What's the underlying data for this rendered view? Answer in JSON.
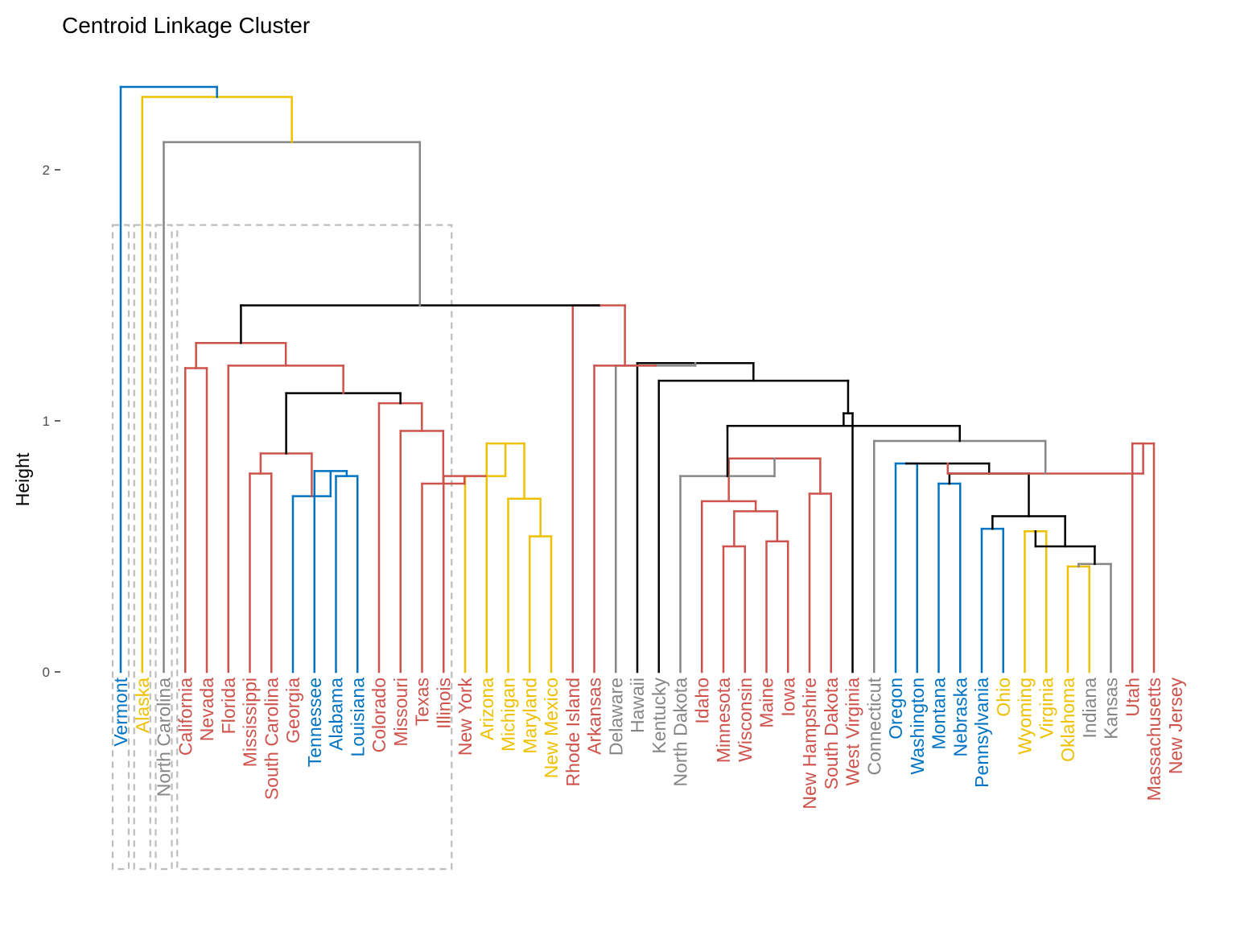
{
  "chart_data": {
    "type": "dendrogram",
    "title": "Centroid Linkage Cluster",
    "ylabel": "Height",
    "xlabel": "",
    "ylim": [
      0,
      2.35
    ],
    "y_ticks": [
      0,
      1,
      2
    ],
    "grid": false,
    "colors": {
      "blue": "#0073C2",
      "yellow": "#EFC000",
      "gray": "#868686",
      "red": "#CD534C",
      "black": "#000000",
      "box": "#BDBDBD"
    },
    "leaves": [
      {
        "name": "Vermont",
        "color": "blue"
      },
      {
        "name": "Alaska",
        "color": "yellow"
      },
      {
        "name": "North Carolina",
        "color": "gray"
      },
      {
        "name": "California",
        "color": "red"
      },
      {
        "name": "Nevada",
        "color": "red"
      },
      {
        "name": "Florida",
        "color": "red"
      },
      {
        "name": "Mississippi",
        "color": "red"
      },
      {
        "name": "South Carolina",
        "color": "red"
      },
      {
        "name": "Georgia",
        "color": "red"
      },
      {
        "name": "Tennessee",
        "color": "blue"
      },
      {
        "name": "Alabama",
        "color": "blue"
      },
      {
        "name": "Louisiana",
        "color": "blue"
      },
      {
        "name": "Colorado",
        "color": "red"
      },
      {
        "name": "Missouri",
        "color": "red"
      },
      {
        "name": "Texas",
        "color": "red"
      },
      {
        "name": "Illinois",
        "color": "red"
      },
      {
        "name": "New York",
        "color": "red"
      },
      {
        "name": "Arizona",
        "color": "yellow"
      },
      {
        "name": "Michigan",
        "color": "yellow"
      },
      {
        "name": "Maryland",
        "color": "yellow"
      },
      {
        "name": "New Mexico",
        "color": "yellow"
      },
      {
        "name": "Rhode Island",
        "color": "red"
      },
      {
        "name": "Arkansas",
        "color": "red"
      },
      {
        "name": "Delaware",
        "color": "gray"
      },
      {
        "name": "Hawaii",
        "color": "gray"
      },
      {
        "name": "Kentucky",
        "color": "gray"
      },
      {
        "name": "North Dakota",
        "color": "gray"
      },
      {
        "name": "Idaho",
        "color": "red"
      },
      {
        "name": "Minnesota",
        "color": "red"
      },
      {
        "name": "Wisconsin",
        "color": "red"
      },
      {
        "name": "Maine",
        "color": "red"
      },
      {
        "name": "Iowa",
        "color": "red"
      },
      {
        "name": "New Hampshire",
        "color": "red"
      },
      {
        "name": "South Dakota",
        "color": "red"
      },
      {
        "name": "West Virginia",
        "color": "red"
      },
      {
        "name": "Connecticut",
        "color": "gray"
      },
      {
        "name": "Oregon",
        "color": "blue"
      },
      {
        "name": "Washington",
        "color": "blue"
      },
      {
        "name": "Montana",
        "color": "blue"
      },
      {
        "name": "Nebraska",
        "color": "blue"
      },
      {
        "name": "Pennsylvania",
        "color": "blue"
      },
      {
        "name": "Ohio",
        "color": "yellow"
      },
      {
        "name": "Wyoming",
        "color": "yellow"
      },
      {
        "name": "Virginia",
        "color": "yellow"
      },
      {
        "name": "Oklahoma",
        "color": "yellow"
      },
      {
        "name": "Indiana",
        "color": "gray"
      },
      {
        "name": "Kansas",
        "color": "gray"
      },
      {
        "name": "Utah",
        "color": "red"
      },
      {
        "name": "Massachusetts",
        "color": "red"
      },
      {
        "name": "New Jersey",
        "color": "red"
      }
    ],
    "merges": [
      {
        "id": "m1",
        "left": "Minnesota",
        "right": "Wisconsin",
        "height": 0.5,
        "color": "red"
      },
      {
        "id": "m2",
        "left": "Maine",
        "right": "Iowa",
        "height": 0.52,
        "color": "red"
      },
      {
        "id": "m3",
        "left": "m1",
        "right": "m2",
        "height": 0.64,
        "color": "red"
      },
      {
        "id": "m4",
        "left": "Idaho",
        "right": "m3",
        "height": 0.68,
        "color": "red"
      },
      {
        "id": "m5",
        "left": "New Hampshire",
        "right": "South Dakota",
        "height": 0.71,
        "color": "red"
      },
      {
        "id": "m6",
        "left": "m4",
        "right": "m5",
        "height": 0.85,
        "color": "red"
      },
      {
        "id": "m7",
        "left": "North Dakota",
        "right": "m6",
        "height": 0.78,
        "color": "gray"
      },
      {
        "id": "m8",
        "left": "Oregon",
        "right": "Washington",
        "height": 0.83,
        "color": "blue"
      },
      {
        "id": "m9",
        "left": "Montana",
        "right": "Nebraska",
        "height": 0.75,
        "color": "blue"
      },
      {
        "id": "m10",
        "left": "Pennsylvania",
        "right": "Ohio",
        "height": 0.57,
        "color": "blue"
      },
      {
        "id": "m11",
        "left": "Wyoming",
        "right": "Virginia",
        "height": 0.56,
        "color": "yellow"
      },
      {
        "id": "m12",
        "left": "Oklahoma",
        "right": "Indiana",
        "height": 0.42,
        "color": "yellow"
      },
      {
        "id": "m13",
        "left": "m12",
        "right": "Kansas",
        "height": 0.43,
        "color": "gray"
      },
      {
        "id": "m14",
        "left": "m11",
        "right": "m13",
        "height": 0.5,
        "color": "black"
      },
      {
        "id": "m15",
        "left": "m10",
        "right": "m14",
        "height": 0.62,
        "color": "black"
      },
      {
        "id": "m16",
        "left": "m9",
        "right": "m15",
        "height": 0.79,
        "color": "black"
      },
      {
        "id": "m17",
        "left": "m8",
        "right": "m16",
        "height": 0.83,
        "color": "black"
      },
      {
        "id": "m18",
        "left": "Utah",
        "right": "Massachusetts",
        "height": 0.91,
        "color": "red"
      },
      {
        "id": "m19",
        "left": "m17",
        "right": "m18",
        "height": 0.79,
        "color": "red"
      },
      {
        "id": "m20",
        "left": "Connecticut",
        "right": "m19",
        "height": 0.92,
        "color": "gray"
      },
      {
        "id": "m21",
        "left": "m7",
        "right": "m20",
        "height": 0.98,
        "color": "black"
      },
      {
        "id": "m22",
        "left": "West Virginia",
        "right": "m21",
        "height": 1.03,
        "color": "black"
      },
      {
        "id": "m23",
        "left": "Kentucky",
        "right": "m22",
        "height": 1.16,
        "color": "black"
      },
      {
        "id": "m24",
        "left": "Hawaii",
        "right": "m23",
        "height": 1.23,
        "color": "black"
      },
      {
        "id": "m25",
        "left": "Delaware",
        "right": "m24",
        "height": 1.22,
        "color": "gray"
      },
      {
        "id": "m26",
        "left": "Arkansas",
        "right": "m25",
        "height": 1.22,
        "color": "red"
      },
      {
        "id": "m27",
        "left": "Rhode Island",
        "right": "m26",
        "height": 1.46,
        "color": "red"
      },
      {
        "id": "m28",
        "left": "Maryland",
        "right": "New Mexico",
        "height": 0.54,
        "color": "yellow"
      },
      {
        "id": "m29",
        "left": "Michigan",
        "right": "m28",
        "height": 0.69,
        "color": "yellow"
      },
      {
        "id": "m30",
        "left": "Arizona",
        "right": "m29",
        "height": 0.91,
        "color": "yellow"
      },
      {
        "id": "m31",
        "left": "New York",
        "right": "m30",
        "height": 0.78,
        "color": "yellow"
      },
      {
        "id": "m32",
        "left": "Illinois",
        "right": "m31",
        "height": 0.78,
        "color": "red"
      },
      {
        "id": "m33",
        "left": "Texas",
        "right": "m32",
        "height": 0.75,
        "color": "red"
      },
      {
        "id": "m34",
        "left": "Missouri",
        "right": "m33",
        "height": 0.96,
        "color": "red"
      },
      {
        "id": "m35",
        "left": "Colorado",
        "right": "m34",
        "height": 1.07,
        "color": "red"
      },
      {
        "id": "m36",
        "left": "Alabama",
        "right": "Louisiana",
        "height": 0.78,
        "color": "blue"
      },
      {
        "id": "m37",
        "left": "Tennessee",
        "right": "m36",
        "height": 0.8,
        "color": "blue"
      },
      {
        "id": "m38",
        "left": "Georgia",
        "right": "m37",
        "height": 0.7,
        "color": "blue"
      },
      {
        "id": "m39",
        "left": "Mississippi",
        "right": "South Carolina",
        "height": 0.79,
        "color": "red"
      },
      {
        "id": "m40",
        "left": "m39",
        "right": "m38",
        "height": 0.87,
        "color": "red"
      },
      {
        "id": "m41",
        "left": "m40",
        "right": "m35",
        "height": 1.11,
        "color": "black"
      },
      {
        "id": "m42",
        "left": "Florida",
        "right": "m41",
        "height": 1.22,
        "color": "red"
      },
      {
        "id": "m43",
        "left": "California",
        "right": "Nevada",
        "height": 1.21,
        "color": "red"
      },
      {
        "id": "m44",
        "left": "m43",
        "right": "m42",
        "height": 1.31,
        "color": "red"
      },
      {
        "id": "m45",
        "left": "m44",
        "right": "m27",
        "height": 1.46,
        "color": "black"
      },
      {
        "id": "m46",
        "left": "North Carolina",
        "right": "m45",
        "height": 2.11,
        "color": "gray"
      },
      {
        "id": "m47",
        "left": "Alaska",
        "right": "m46",
        "height": 2.29,
        "color": "yellow"
      },
      {
        "id": "m48",
        "left": "Vermont",
        "right": "m47",
        "height": 2.33,
        "color": "blue"
      }
    ],
    "cluster_boxes": [
      {
        "first": "Vermont",
        "last": "Vermont"
      },
      {
        "first": "Alaska",
        "last": "Alaska"
      },
      {
        "first": "North Carolina",
        "last": "North Carolina"
      },
      {
        "first": "California",
        "last": "Illinois"
      }
    ],
    "cluster_box_top_height": 1.78
  }
}
